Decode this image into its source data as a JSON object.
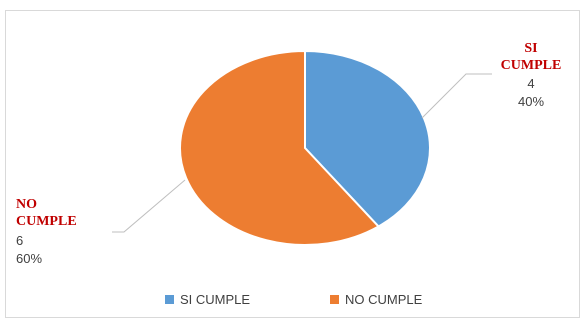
{
  "chart_data": {
    "type": "pie",
    "categories": [
      "SI CUMPLE",
      "NO CUMPLE"
    ],
    "values": [
      4,
      6
    ],
    "percentages": [
      "40%",
      "60%"
    ],
    "colors": [
      "#5b9bd5",
      "#ed7d31"
    ],
    "legend_position": "bottom",
    "data_labels": [
      {
        "name_lines": [
          "SI",
          "CUMPLE"
        ],
        "value": "4",
        "percent": "40%"
      },
      {
        "name_lines": [
          "NO",
          "CUMPLE"
        ],
        "value": "6",
        "percent": "60%"
      }
    ]
  }
}
